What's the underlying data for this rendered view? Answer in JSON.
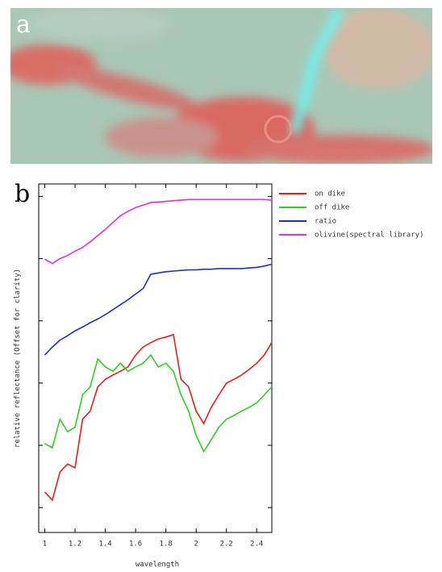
{
  "panels": {
    "a": "a",
    "b": "b"
  },
  "chart_data": {
    "type": "line",
    "x_label": "wavelength",
    "y_label": "relative reflectance (Offset for clarity)",
    "x": [
      1.0,
      1.05,
      1.1,
      1.15,
      1.2,
      1.25,
      1.3,
      1.35,
      1.4,
      1.45,
      1.5,
      1.55,
      1.6,
      1.65,
      1.7,
      1.75,
      1.8,
      1.85,
      1.9,
      1.95,
      2.0,
      2.05,
      2.1,
      2.15,
      2.2,
      2.25,
      2.3,
      2.35,
      2.4,
      2.45,
      2.5
    ],
    "xlim": [
      0.96,
      2.5
    ],
    "xticks": [
      1,
      1.2,
      1.4,
      1.6,
      1.8,
      2,
      2.2,
      2.4
    ],
    "ylim": [
      -0.4,
      5.2
    ],
    "yticks": [
      0,
      1,
      2,
      3,
      4,
      5
    ],
    "series": [
      {
        "name": "on dike",
        "color": "#e8201c",
        "values": [
          0.25,
          0.12,
          0.57,
          0.7,
          0.64,
          1.42,
          1.55,
          1.94,
          2.06,
          2.13,
          2.19,
          2.26,
          2.45,
          2.58,
          2.65,
          2.71,
          2.74,
          2.78,
          2.06,
          1.94,
          1.55,
          1.35,
          1.61,
          1.81,
          2.0,
          2.06,
          2.13,
          2.22,
          2.32,
          2.45,
          2.65
        ]
      },
      {
        "name": "off dike",
        "color": "#2ed21e",
        "values": [
          1.03,
          0.96,
          1.42,
          1.22,
          1.29,
          1.81,
          1.94,
          2.39,
          2.26,
          2.19,
          2.32,
          2.19,
          2.26,
          2.32,
          2.45,
          2.26,
          2.32,
          2.19,
          1.81,
          1.55,
          1.16,
          0.9,
          1.09,
          1.29,
          1.42,
          1.48,
          1.55,
          1.61,
          1.68,
          1.81,
          1.94
        ]
      },
      {
        "name": "ratio",
        "color": "#1c2ed6",
        "values": [
          2.45,
          2.58,
          2.69,
          2.76,
          2.84,
          2.9,
          2.97,
          3.03,
          3.1,
          3.18,
          3.26,
          3.34,
          3.43,
          3.52,
          3.75,
          3.77,
          3.79,
          3.8,
          3.81,
          3.82,
          3.82,
          3.83,
          3.83,
          3.84,
          3.84,
          3.84,
          3.84,
          3.85,
          3.86,
          3.88,
          3.91
        ]
      },
      {
        "name": "olivine(spectral library)",
        "color": "#e62ee6",
        "values": [
          3.99,
          3.92,
          4.0,
          4.05,
          4.12,
          4.18,
          4.27,
          4.37,
          4.47,
          4.58,
          4.69,
          4.76,
          4.82,
          4.86,
          4.9,
          4.91,
          4.92,
          4.93,
          4.94,
          4.95,
          4.95,
          4.95,
          4.95,
          4.95,
          4.95,
          4.95,
          4.95,
          4.95,
          4.95,
          4.95,
          4.94
        ]
      }
    ]
  }
}
